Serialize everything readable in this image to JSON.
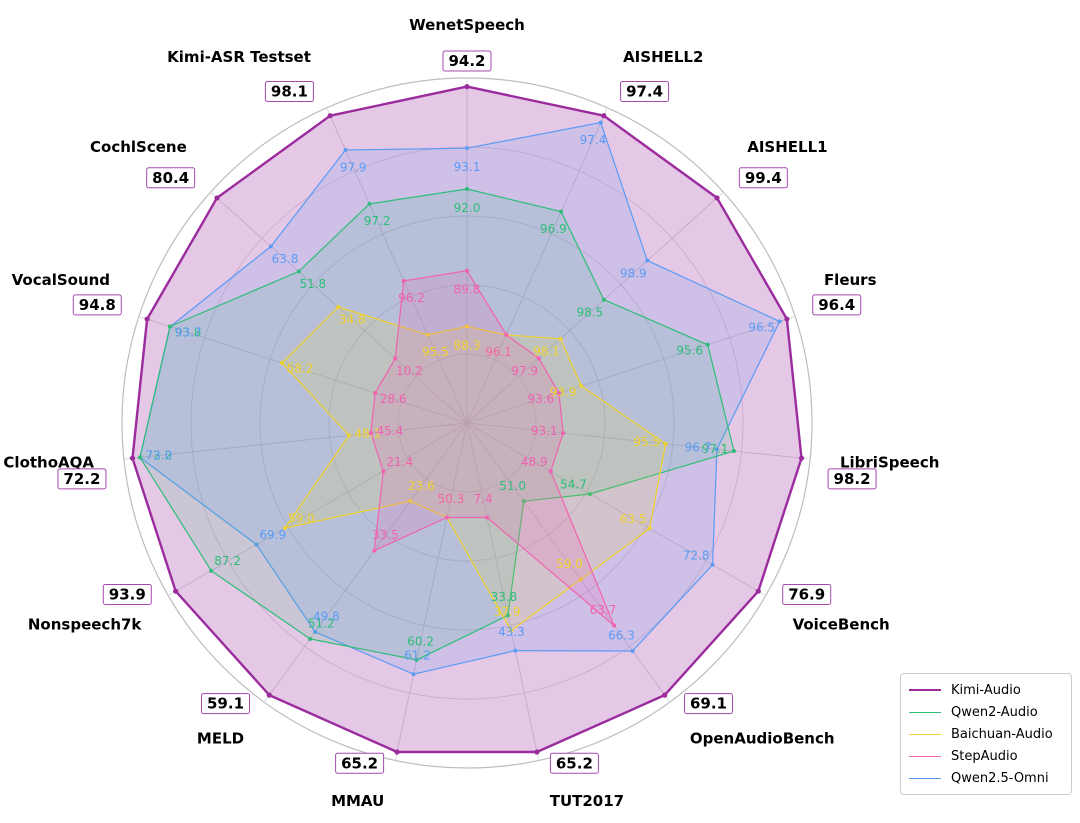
{
  "chart_data": {
    "type": "radar",
    "categories": [
      "WenetSpeech",
      "AISHELL2",
      "AISHELL1",
      "Fleurs",
      "LibriSpeech",
      "VoiceBench",
      "OpenAudioBench",
      "TUT2017",
      "MMAU",
      "MELD",
      "Nonspeech7k",
      "ClothoAQA",
      "VocalSound",
      "CochlScene",
      "Kimi-ASR Testset"
    ],
    "series": [
      {
        "name": "Kimi-Audio",
        "color": "#9b2c9e",
        "values": [
          94.2,
          97.4,
          99.4,
          96.4,
          98.2,
          76.9,
          69.1,
          65.2,
          65.2,
          59.1,
          93.9,
          72.2,
          94.8,
          80.4,
          98.1
        ]
      },
      {
        "name": "Qwen2-Audio",
        "color": "#2ebd79",
        "values": [
          92.0,
          96.9,
          98.5,
          95.6,
          97.1,
          54.7,
          51.0,
          33.8,
          60.2,
          51.2,
          87.2,
          72.2,
          93.8,
          51.8,
          97.2
        ]
      },
      {
        "name": "Baichuan-Audio",
        "color": "#f0d22e",
        "values": [
          88.3,
          96.1,
          98.1,
          93.9,
          95.5,
          63.5,
          59.0,
          37.9,
          50.3,
          23.6,
          59.0,
          48.1,
          58.2,
          34.8,
          95.5
        ]
      },
      {
        "name": "StepAudio",
        "color": "#f062b0",
        "values": [
          89.8,
          96.1,
          97.9,
          93.6,
          93.1,
          48.9,
          63.7,
          7.4,
          50.3,
          33.5,
          21.4,
          45.4,
          28.6,
          10.2,
          96.2
        ]
      },
      {
        "name": "Qwen2.5-Omni",
        "color": "#5b9bf5",
        "values": [
          93.1,
          97.4,
          98.9,
          96.5,
          96.7,
          72.8,
          66.3,
          43.3,
          61.2,
          49.8,
          69.9,
          73.0,
          93.7,
          63.8,
          97.9
        ]
      }
    ],
    "legend_position": "bottom-right",
    "grid": true
  }
}
